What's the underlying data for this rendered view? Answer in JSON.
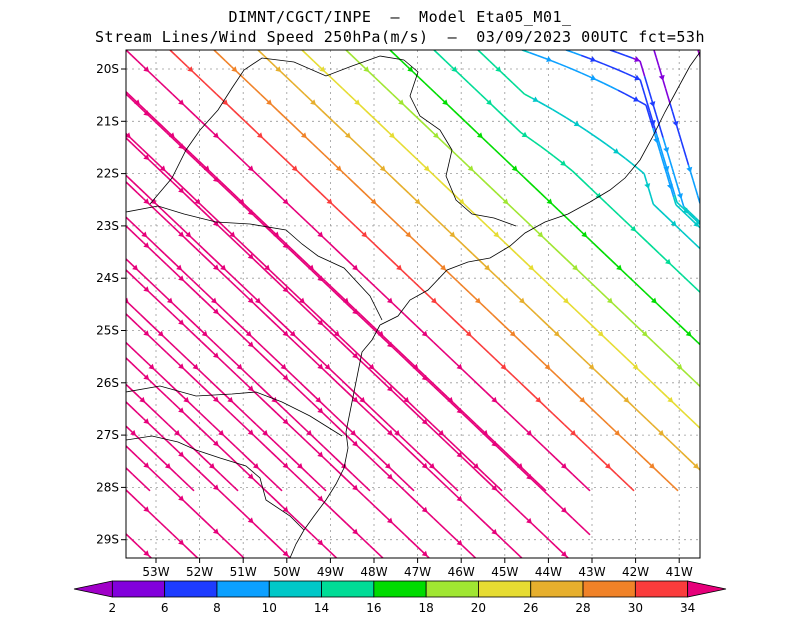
{
  "header": {
    "line1": "DIMNT/CGCT/INPE  —  Model Eta05_M01_",
    "line2": "Stream Lines/Wind Speed 250hPa(m/s)  —  03/09/2023 00UTC fct=53h"
  },
  "map": {
    "lat_labels": [
      "20S",
      "21S",
      "22S",
      "23S",
      "24S",
      "25S",
      "26S",
      "27S",
      "28S",
      "29S"
    ],
    "lon_labels": [
      "53W",
      "52W",
      "51W",
      "50W",
      "49W",
      "48W",
      "47W",
      "46W",
      "45W",
      "44W",
      "43W",
      "42W",
      "41W"
    ]
  },
  "colorbar": {
    "labels": [
      "2",
      "6",
      "8",
      "10",
      "14",
      "16",
      "18",
      "20",
      "26",
      "28",
      "30",
      "34"
    ],
    "colors": [
      "#a000c8",
      "#8200dc",
      "#1e3cff",
      "#0ca0ff",
      "#00c8c8",
      "#00dc96",
      "#00dc00",
      "#a0e632",
      "#e6dc32",
      "#e6af2d",
      "#f08228",
      "#fa3c3c",
      "#e6007a"
    ]
  }
}
